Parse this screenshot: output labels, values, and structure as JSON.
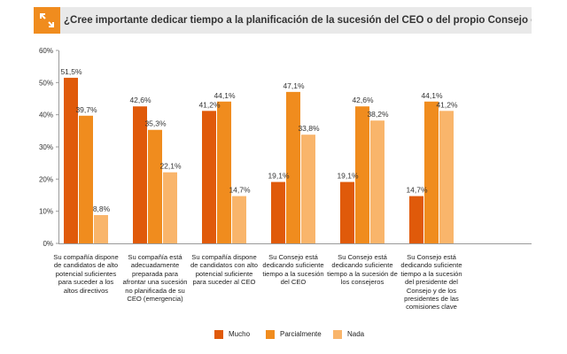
{
  "header": {
    "title": "¿Cree importante dedicar tiempo a la planificación de la sucesión del CEO o del propio Consejo en su compañía?",
    "icon": "expand-arrows-icon"
  },
  "colors": {
    "accent": "#f08c1e",
    "Mucho": "#e05a0a",
    "Parcialmente": "#f08c1e",
    "Nada": "#f9b56b"
  },
  "chart_data": {
    "type": "bar",
    "title": "¿Cree importante dedicar tiempo a la planificación de la sucesión del CEO o del propio Consejo en su compañía?",
    "categories": [
      "Su compañía dispone de candidatos de alto potencial suficientes para suceder a los altos directivos",
      "Su compañía está adecuadamente preparada para afrontar una sucesión no planificada de su CEO (emergencia)",
      "Su compañía dispone de candidatos con alto potencial suficiente para suceder al CEO",
      "Su Consejo está dedicando suficiente tiempo a la sucesión del CEO",
      "Su Consejo está dedicando suficiente tiempo a la sucesión de los consejeros",
      "Su Consejo está dedicando suficiente tiempo a la sucesión del presidente del Consejo y de los presidentes de las comisiones clave"
    ],
    "series": [
      {
        "name": "Mucho",
        "values": [
          51.5,
          42.6,
          41.2,
          19.1,
          19.1,
          14.7
        ],
        "labels": [
          "51,5%",
          "42,6%",
          "41,2%",
          "19,1%",
          "19,1%",
          "14,7%"
        ]
      },
      {
        "name": "Parcialmente",
        "values": [
          39.7,
          35.3,
          44.1,
          47.1,
          42.6,
          44.1
        ],
        "labels": [
          "39,7%",
          "35,3%",
          "44,1%",
          "47,1%",
          "42,6%",
          "44,1%"
        ]
      },
      {
        "name": "Nada",
        "values": [
          8.8,
          22.1,
          14.7,
          33.8,
          38.2,
          41.2
        ],
        "labels": [
          "8,8%",
          "22,1%",
          "14,7%",
          "33,8%",
          "38,2%",
          "41,2%"
        ]
      }
    ],
    "yticks": [
      "0%",
      "10%",
      "20%",
      "30%",
      "40%",
      "50%",
      "60%"
    ],
    "ylim": [
      0,
      60
    ],
    "xlabel": "",
    "ylabel": "",
    "grid": false,
    "legend_position": "bottom"
  }
}
